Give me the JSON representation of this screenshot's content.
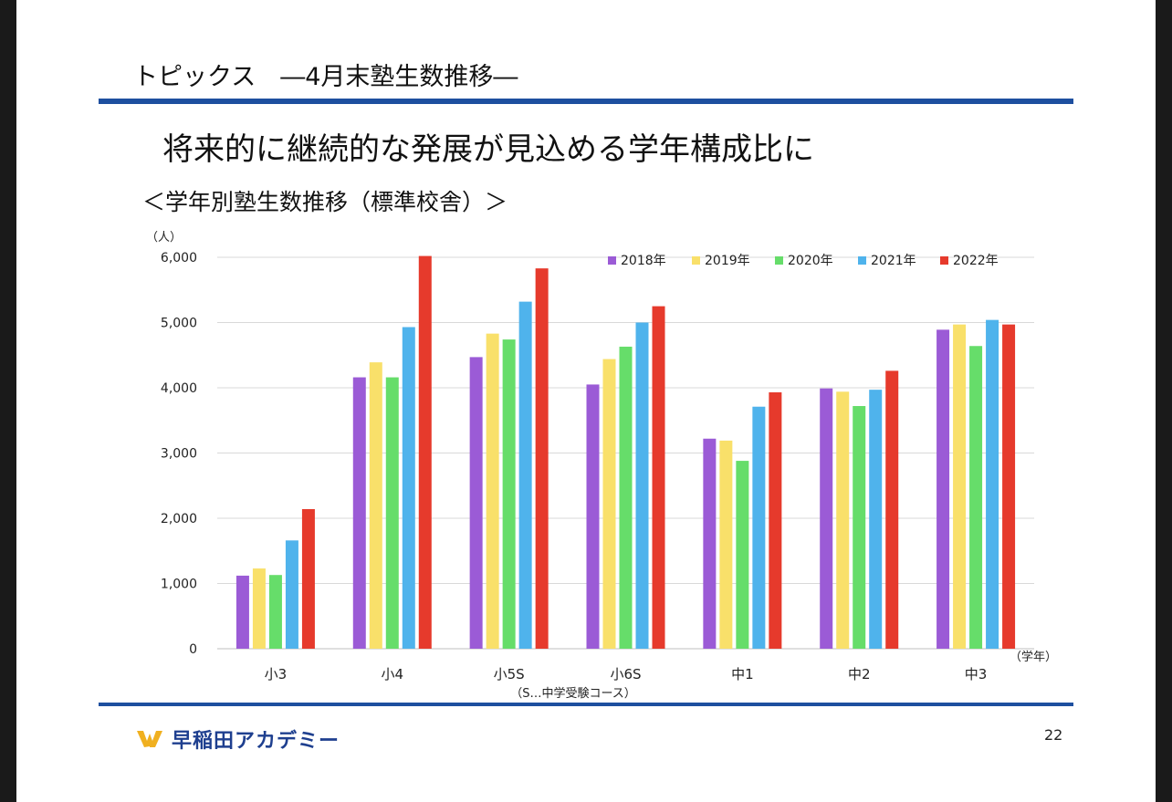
{
  "slide": {
    "topic_title": "トピックス　―4月末塾生数推移―",
    "headline": "将来的に継続的な発展が見込める学年構成比に",
    "chart_heading": "＜学年別塾生数推移（標準校舎）＞",
    "brand": "早稲田アカデミー",
    "page_number": "22"
  },
  "colors": {
    "rule": "#1e4f9f",
    "series": [
      "#9b5bd6",
      "#f9e06a",
      "#66dd6a",
      "#4fb3ec",
      "#e63a2c"
    ]
  },
  "chart_data": {
    "type": "bar",
    "title": "＜学年別塾生数推移（標準校舎）＞",
    "ylabel": "（人）",
    "xlabel": "（学年）",
    "note": "（S…中学受験コース）",
    "ylim": [
      0,
      6000
    ],
    "yticks": [
      0,
      1000,
      2000,
      3000,
      4000,
      5000,
      6000
    ],
    "ytick_labels": [
      "0",
      "1,000",
      "2,000",
      "3,000",
      "4,000",
      "5,000",
      "6,000"
    ],
    "grid": true,
    "legend_position": "top-right",
    "categories": [
      "小3",
      "小4",
      "小5S",
      "小6S",
      "中1",
      "中2",
      "中3"
    ],
    "series": [
      {
        "name": "2018年",
        "values": [
          1120,
          4160,
          4470,
          4050,
          3220,
          3990,
          4890
        ]
      },
      {
        "name": "2019年",
        "values": [
          1230,
          4390,
          4830,
          4440,
          3190,
          3940,
          4970
        ]
      },
      {
        "name": "2020年",
        "values": [
          1130,
          4160,
          4740,
          4630,
          2880,
          3720,
          4640
        ]
      },
      {
        "name": "2021年",
        "values": [
          1660,
          4930,
          5320,
          5000,
          3710,
          3970,
          5040
        ]
      },
      {
        "name": "2022年",
        "values": [
          2140,
          6020,
          5830,
          5250,
          3930,
          4260,
          4970
        ]
      }
    ]
  }
}
